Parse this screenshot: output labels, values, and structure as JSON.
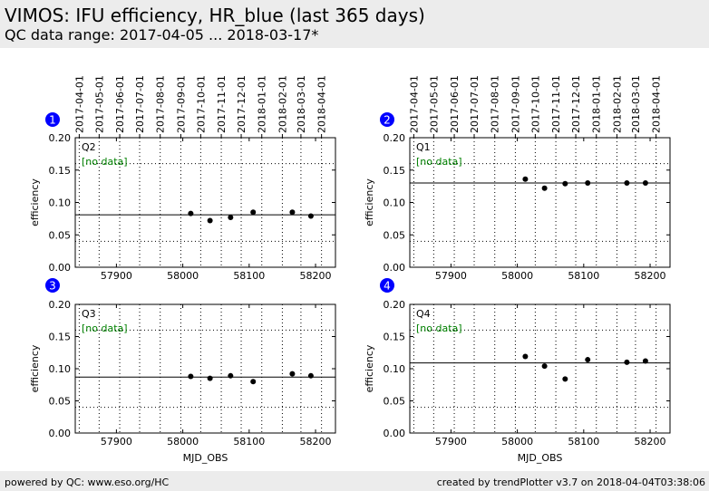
{
  "header": {
    "title": "VIMOS: IFU efficiency, HR_blue (last 365 days)",
    "subtitle": "QC data range: 2017-04-05 ... 2018-03-17*"
  },
  "footer": {
    "left": "powered by QC: www.eso.org/HC",
    "right": "created by trendPlotter v3.7 on 2018-04-04T03:38:06"
  },
  "colors": {
    "badge": "#0000ff",
    "nodata": "#008000",
    "header_bg": "#ececec"
  },
  "date_ticks": [
    {
      "label": "2017-04-01",
      "mjd": 57844
    },
    {
      "label": "2017-05-01",
      "mjd": 57874
    },
    {
      "label": "2017-06-01",
      "mjd": 57905
    },
    {
      "label": "2017-07-01",
      "mjd": 57935
    },
    {
      "label": "2017-08-01",
      "mjd": 57966
    },
    {
      "label": "2017-09-01",
      "mjd": 57997
    },
    {
      "label": "2017-10-01",
      "mjd": 58027
    },
    {
      "label": "2017-11-01",
      "mjd": 58058
    },
    {
      "label": "2017-12-01",
      "mjd": 58088
    },
    {
      "label": "2018-01-01",
      "mjd": 58119
    },
    {
      "label": "2018-02-01",
      "mjd": 58150
    },
    {
      "label": "2018-03-01",
      "mjd": 58178
    },
    {
      "label": "2018-04-01",
      "mjd": 58209
    }
  ],
  "chart_data": [
    {
      "type": "scatter",
      "badge": "1",
      "quadrant": "Q2",
      "nodata": "[no data]",
      "ylabel": "efficiency",
      "xlabel": "",
      "xlim": [
        57838,
        58230
      ],
      "ylim": [
        0.0,
        0.2
      ],
      "xticks": [
        57900,
        58000,
        58100,
        58200
      ],
      "yticks": [
        0.0,
        0.05,
        0.1,
        0.15,
        0.2
      ],
      "ytick_labels": [
        "0.00",
        "0.05",
        "0.10",
        "0.15",
        "0.20"
      ],
      "dotted_levels": [
        0.04,
        0.16
      ],
      "reference_line": 0.081,
      "points": [
        [
          58012,
          0.083
        ],
        [
          58041,
          0.072
        ],
        [
          58072,
          0.077
        ],
        [
          58106,
          0.085
        ],
        [
          58165,
          0.085
        ],
        [
          58193,
          0.079
        ]
      ],
      "show_date_axis": true
    },
    {
      "type": "scatter",
      "badge": "2",
      "quadrant": "Q1",
      "nodata": "[no data]",
      "ylabel": "efficiency",
      "xlabel": "",
      "xlim": [
        57838,
        58230
      ],
      "ylim": [
        0.0,
        0.2
      ],
      "xticks": [
        57900,
        58000,
        58100,
        58200
      ],
      "yticks": [
        0.0,
        0.05,
        0.1,
        0.15,
        0.2
      ],
      "ytick_labels": [
        "0.00",
        "0.05",
        "0.10",
        "0.15",
        "0.20"
      ],
      "dotted_levels": [
        0.04,
        0.16
      ],
      "reference_line": 0.13,
      "points": [
        [
          58012,
          0.136
        ],
        [
          58041,
          0.122
        ],
        [
          58072,
          0.129
        ],
        [
          58106,
          0.13
        ],
        [
          58165,
          0.13
        ],
        [
          58193,
          0.13
        ]
      ],
      "show_date_axis": true
    },
    {
      "type": "scatter",
      "badge": "3",
      "quadrant": "Q3",
      "nodata": "[no data]",
      "ylabel": "efficiency",
      "xlabel": "MJD_OBS",
      "xlim": [
        57838,
        58230
      ],
      "ylim": [
        0.0,
        0.2
      ],
      "xticks": [
        57900,
        58000,
        58100,
        58200
      ],
      "yticks": [
        0.0,
        0.05,
        0.1,
        0.15,
        0.2
      ],
      "ytick_labels": [
        "0.00",
        "0.05",
        "0.10",
        "0.15",
        "0.20"
      ],
      "dotted_levels": [
        0.04,
        0.16
      ],
      "reference_line": 0.087,
      "points": [
        [
          58012,
          0.088
        ],
        [
          58041,
          0.085
        ],
        [
          58072,
          0.089
        ],
        [
          58106,
          0.08
        ],
        [
          58165,
          0.092
        ],
        [
          58193,
          0.089
        ]
      ],
      "show_date_axis": false
    },
    {
      "type": "scatter",
      "badge": "4",
      "quadrant": "Q4",
      "nodata": "[no data]",
      "ylabel": "efficiency",
      "xlabel": "MJD_OBS",
      "xlim": [
        57838,
        58230
      ],
      "ylim": [
        0.0,
        0.2
      ],
      "xticks": [
        57900,
        58000,
        58100,
        58200
      ],
      "yticks": [
        0.0,
        0.05,
        0.1,
        0.15,
        0.2
      ],
      "ytick_labels": [
        "0.00",
        "0.05",
        "0.10",
        "0.15",
        "0.20"
      ],
      "dotted_levels": [
        0.04,
        0.16
      ],
      "reference_line": 0.109,
      "points": [
        [
          58012,
          0.119
        ],
        [
          58041,
          0.104
        ],
        [
          58072,
          0.084
        ],
        [
          58106,
          0.114
        ],
        [
          58165,
          0.11
        ],
        [
          58193,
          0.112
        ]
      ],
      "show_date_axis": false
    }
  ]
}
